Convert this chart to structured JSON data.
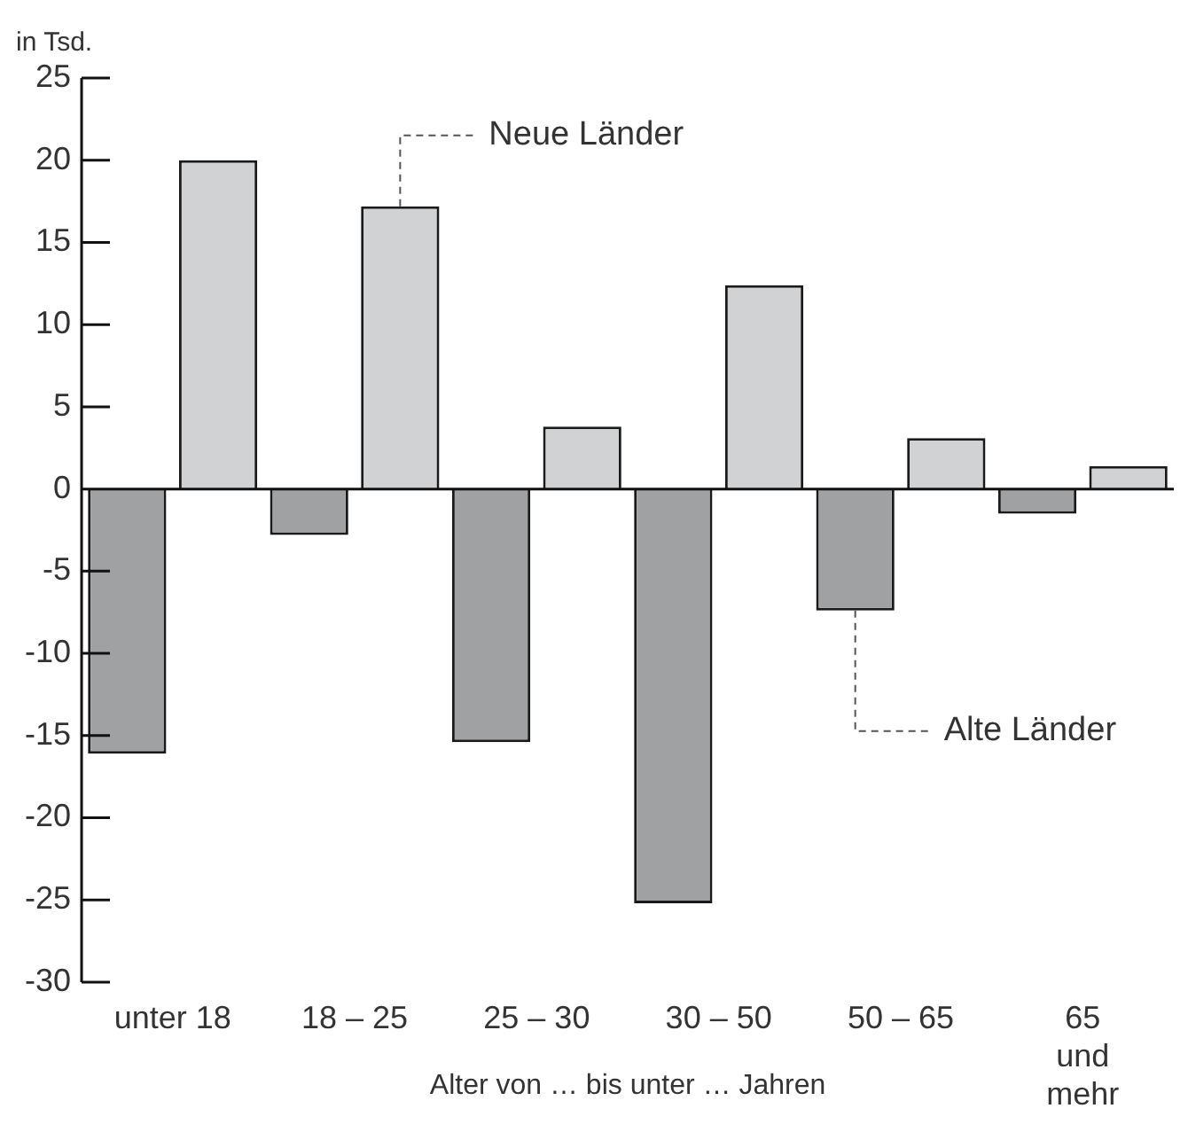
{
  "chart_data": {
    "type": "bar",
    "ylabel": "in Tsd.",
    "xlabel": "Alter von … bis unter … Jahren",
    "categories": [
      "unter 18",
      "18 – 25",
      "25 – 30",
      "30 – 50",
      "50 – 65",
      "65 und mehr"
    ],
    "series": [
      {
        "name": "Alte Länder",
        "color": "#a0a1a3",
        "values": [
          -16.1,
          -2.8,
          -15.4,
          -25.2,
          -7.4,
          -1.5
        ]
      },
      {
        "name": "Neue Länder",
        "color": "#d1d2d4",
        "values": [
          20.0,
          17.2,
          3.8,
          12.4,
          3.1,
          1.4
        ]
      }
    ],
    "ylim": [
      -30,
      25
    ],
    "yticks": [
      -30,
      -25,
      -20,
      -15,
      -10,
      -5,
      0,
      5,
      10,
      15,
      20,
      25
    ],
    "legend": false
  }
}
